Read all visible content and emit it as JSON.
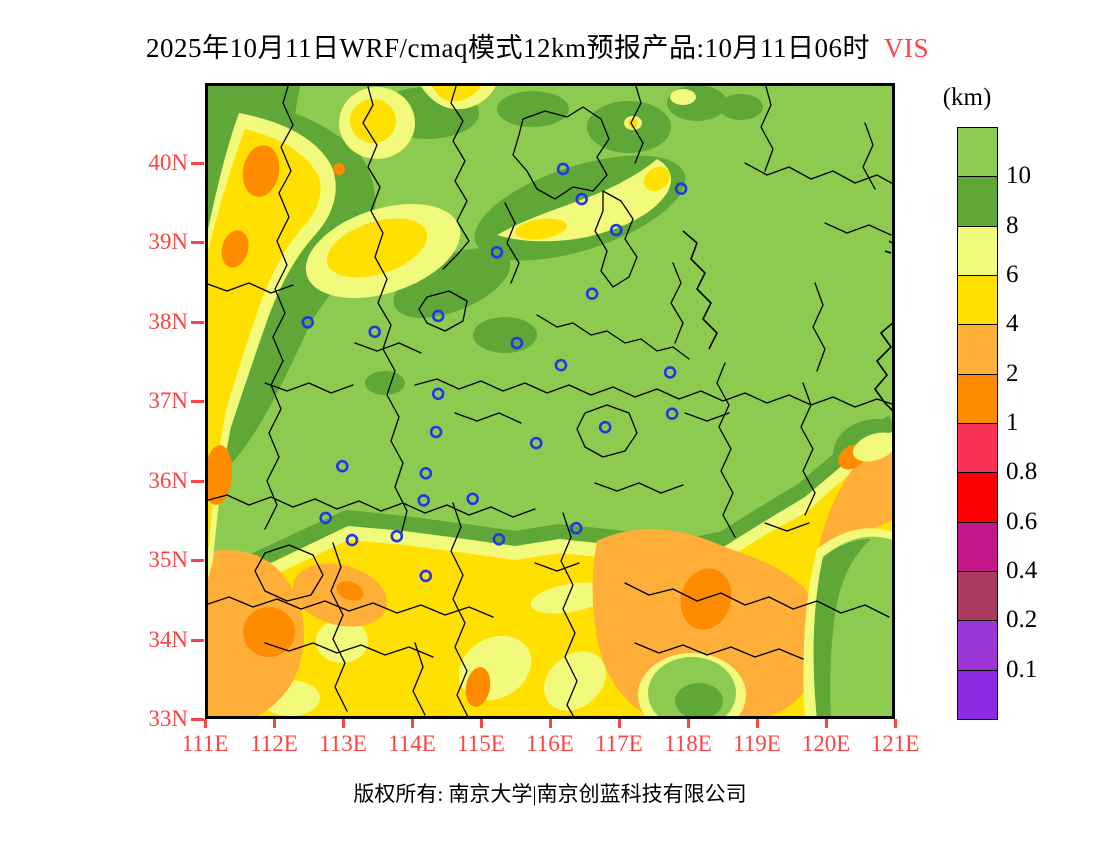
{
  "title": {
    "main": "2025年10月11日WRF/cmaq模式12km预报产品:10月11日06时",
    "variable": "VIS"
  },
  "legend": {
    "unit_label": "(km)",
    "tick_labels": [
      "10",
      "8",
      "6",
      "4",
      "2",
      "1",
      "0.8",
      "0.6",
      "0.4",
      "0.2",
      "0.1"
    ],
    "colors": [
      "#8CCB50",
      "#5FA737",
      "#F1FA7B",
      "#FFE000",
      "#FFAE38",
      "#FF8B00",
      "#F93358",
      "#FF0000",
      "#C3188B",
      "#A93A61",
      "#9B35D3",
      "#8A2BE2"
    ]
  },
  "axes": {
    "x_tick_labels": [
      "111E",
      "112E",
      "113E",
      "114E",
      "115E",
      "116E",
      "117E",
      "118E",
      "119E",
      "120E",
      "121E"
    ],
    "y_tick_labels": [
      "40N",
      "39N",
      "38N",
      "37N",
      "36N",
      "35N",
      "34N",
      "33N"
    ],
    "tick_color": "#FF4343"
  },
  "map": {
    "lon_min": 111,
    "lon_max": 121,
    "lat_min": 33,
    "lat_max": 41,
    "marker_color": "#2238E6",
    "markers": [
      {
        "lon": 116.19,
        "lat": 39.92
      },
      {
        "lon": 116.46,
        "lat": 39.54
      },
      {
        "lon": 117.9,
        "lat": 39.67
      },
      {
        "lon": 116.96,
        "lat": 39.15
      },
      {
        "lon": 115.23,
        "lat": 38.87
      },
      {
        "lon": 116.61,
        "lat": 38.35
      },
      {
        "lon": 112.49,
        "lat": 37.99
      },
      {
        "lon": 113.46,
        "lat": 37.87
      },
      {
        "lon": 114.38,
        "lat": 38.07
      },
      {
        "lon": 115.52,
        "lat": 37.73
      },
      {
        "lon": 116.16,
        "lat": 37.45
      },
      {
        "lon": 114.38,
        "lat": 37.09
      },
      {
        "lon": 114.35,
        "lat": 36.61
      },
      {
        "lon": 115.8,
        "lat": 36.47
      },
      {
        "lon": 112.99,
        "lat": 36.18
      },
      {
        "lon": 114.2,
        "lat": 36.09
      },
      {
        "lon": 114.17,
        "lat": 35.75
      },
      {
        "lon": 114.88,
        "lat": 35.77
      },
      {
        "lon": 112.75,
        "lat": 35.53
      },
      {
        "lon": 113.13,
        "lat": 35.25
      },
      {
        "lon": 113.78,
        "lat": 35.3
      },
      {
        "lon": 115.26,
        "lat": 35.26
      },
      {
        "lon": 116.38,
        "lat": 35.4
      },
      {
        "lon": 117.74,
        "lat": 37.36
      },
      {
        "lon": 117.77,
        "lat": 36.84
      },
      {
        "lon": 116.8,
        "lat": 36.67
      },
      {
        "lon": 114.2,
        "lat": 34.8
      }
    ]
  },
  "footer": {
    "text": "版权所有: 南京大学|南京创蓝科技有限公司"
  },
  "chart_data": {
    "type": "heatmap",
    "variable": "VIS",
    "unit": "km",
    "levels": [
      0.1,
      0.2,
      0.4,
      0.6,
      0.8,
      1,
      2,
      4,
      6,
      8,
      10
    ],
    "level_colors_low_to_high": [
      "#8A2BE2",
      "#9B35D3",
      "#A93A61",
      "#C3188B",
      "#FF0000",
      "#F93358",
      "#FF8B00",
      "#FFAE38",
      "#FFE000",
      "#F1FA7B",
      "#5FA737",
      "#8CCB50"
    ],
    "lon_range": [
      111,
      121
    ],
    "lat_range": [
      33,
      41
    ],
    "summary": "Visibility mostly above 10 km in the north; 4-6 km band with 2-4 and 1-2 km cores south of about 35.5N and in the northwest corner band"
  }
}
